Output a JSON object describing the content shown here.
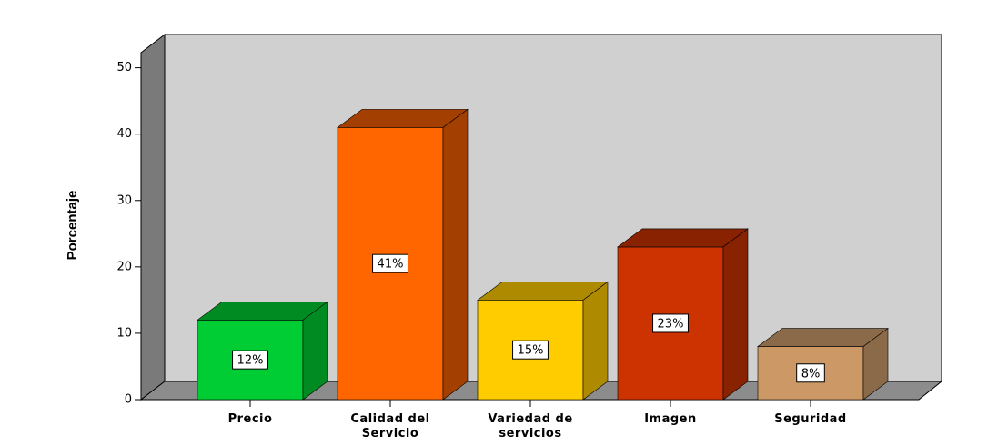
{
  "chart_data": {
    "type": "bar3d",
    "y_label": "Porcentaje",
    "categories": [
      "Precio",
      "Calidad del Servicio",
      "Variedad de servicios",
      "Imagen",
      "Seguridad"
    ],
    "values": [
      12,
      41,
      15,
      23,
      8
    ],
    "value_labels": [
      "12%",
      "41%",
      "15%",
      "23%",
      "8%"
    ],
    "colors": [
      "#00cc33",
      "#ff6600",
      "#ffcc00",
      "#cc3300",
      "#cc9966"
    ],
    "side_colors": [
      "#008a22",
      "#a33f00",
      "#ad8a00",
      "#882200",
      "#8a6a48"
    ],
    "ylim": [
      0,
      52
    ],
    "yticks": [
      0,
      10,
      20,
      30,
      40,
      50
    ]
  }
}
